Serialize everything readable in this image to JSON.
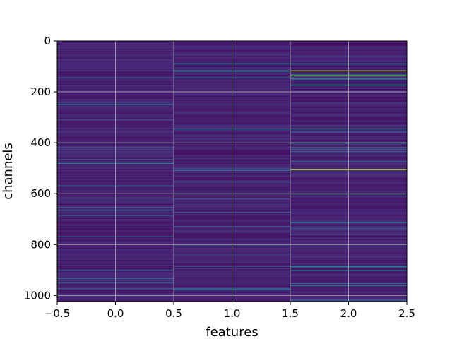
{
  "chart_data": {
    "type": "heatmap",
    "xlabel": "features",
    "ylabel": "channels",
    "xlim": [
      -0.5,
      2.5
    ],
    "ylim": [
      1024,
      0
    ],
    "y_inverted": true,
    "grid": true,
    "colormap": "viridis",
    "columns": [
      0,
      1,
      2
    ],
    "rows": 1024,
    "x_ticks": [
      -0.5,
      0.0,
      0.5,
      1.0,
      1.5,
      2.0,
      2.5
    ],
    "x_tick_labels": [
      "−0.5",
      "0.0",
      "0.5",
      "1.0",
      "1.5",
      "2.0",
      "2.5"
    ],
    "y_ticks": [
      0,
      200,
      400,
      600,
      800,
      1000
    ],
    "y_tick_labels": [
      "0",
      "200",
      "400",
      "600",
      "800",
      "1000"
    ],
    "background_value": 0.06,
    "noise_amplitude": 0.1,
    "highlights": [
      {
        "column": 0,
        "row": 250,
        "value": 0.4
      },
      {
        "column": 0,
        "row": 480,
        "value": 0.45
      },
      {
        "column": 0,
        "row": 900,
        "value": 0.35
      },
      {
        "column": 0,
        "row": 950,
        "value": 0.35
      },
      {
        "column": 1,
        "row": 90,
        "value": 0.45
      },
      {
        "column": 1,
        "row": 118,
        "value": 0.5
      },
      {
        "column": 1,
        "row": 345,
        "value": 0.5
      },
      {
        "column": 1,
        "row": 510,
        "value": 0.4
      },
      {
        "column": 1,
        "row": 600,
        "value": 0.35
      },
      {
        "column": 2,
        "row": 90,
        "value": 0.45
      },
      {
        "column": 2,
        "row": 118,
        "value": 0.95
      },
      {
        "column": 2,
        "row": 132,
        "value": 0.5
      },
      {
        "column": 2,
        "row": 138,
        "value": 0.9
      },
      {
        "column": 2,
        "row": 150,
        "value": 0.55
      },
      {
        "column": 2,
        "row": 175,
        "value": 0.6
      },
      {
        "column": 2,
        "row": 345,
        "value": 0.5
      },
      {
        "column": 2,
        "row": 400,
        "value": 0.45
      },
      {
        "column": 2,
        "row": 507,
        "value": 0.95
      },
      {
        "column": 2,
        "row": 600,
        "value": 0.5
      },
      {
        "column": 2,
        "row": 715,
        "value": 0.5
      },
      {
        "column": 2,
        "row": 885,
        "value": 0.55
      },
      {
        "column": 2,
        "row": 900,
        "value": 0.5
      },
      {
        "column": 2,
        "row": 960,
        "value": 0.45
      }
    ]
  }
}
